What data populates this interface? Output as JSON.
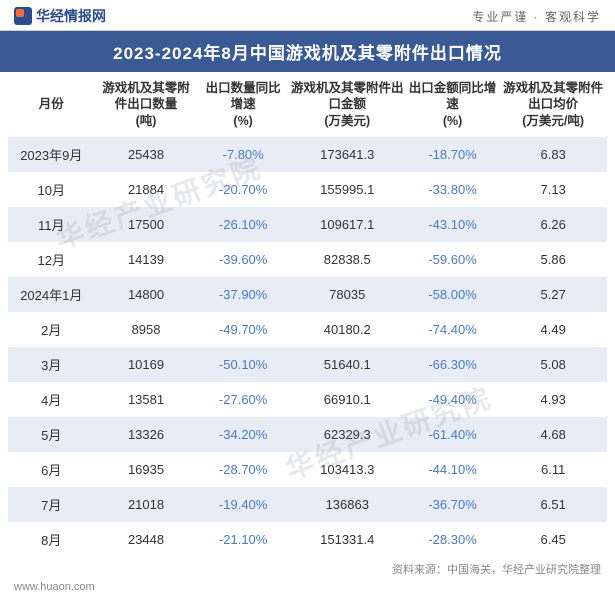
{
  "header": {
    "logo_text": "华经情报网",
    "slogan": "专业严谨 · 客观科学"
  },
  "title": "2023-2024年8月中国游戏机及其零附件出口情况",
  "columns": [
    "月份",
    "游戏机及其零附件出口数量\n(吨)",
    "出口数量同比增速\n(%)",
    "游戏机及其零附件出口金额\n(万美元)",
    "出口金额同比增速\n(%)",
    "游戏机及其零附件出口均价\n(万美元/吨)"
  ],
  "rows": [
    {
      "month": "2023年9月",
      "qty": "25438",
      "qty_g": "-7.80%",
      "amt": "173641.3",
      "amt_g": "-18.70%",
      "price": "6.83"
    },
    {
      "month": "10月",
      "qty": "21884",
      "qty_g": "-20.70%",
      "amt": "155995.1",
      "amt_g": "-33.80%",
      "price": "7.13"
    },
    {
      "month": "11月",
      "qty": "17500",
      "qty_g": "-26.10%",
      "amt": "109617.1",
      "amt_g": "-43.10%",
      "price": "6.26"
    },
    {
      "month": "12月",
      "qty": "14139",
      "qty_g": "-39.60%",
      "amt": "82838.5",
      "amt_g": "-59.60%",
      "price": "5.86"
    },
    {
      "month": "2024年1月",
      "qty": "14800",
      "qty_g": "-37.90%",
      "amt": "78035",
      "amt_g": "-58.00%",
      "price": "5.27"
    },
    {
      "month": "2月",
      "qty": "8958",
      "qty_g": "-49.70%",
      "amt": "40180.2",
      "amt_g": "-74.40%",
      "price": "4.49"
    },
    {
      "month": "3月",
      "qty": "10169",
      "qty_g": "-50.10%",
      "amt": "51640.1",
      "amt_g": "-66.30%",
      "price": "5.08"
    },
    {
      "month": "4月",
      "qty": "13581",
      "qty_g": "-27.60%",
      "amt": "66910.1",
      "amt_g": "-49.40%",
      "price": "4.93"
    },
    {
      "month": "5月",
      "qty": "13326",
      "qty_g": "-34.20%",
      "amt": "62329.3",
      "amt_g": "-61.40%",
      "price": "4.68"
    },
    {
      "month": "6月",
      "qty": "16935",
      "qty_g": "-28.70%",
      "amt": "103413.3",
      "amt_g": "-44.10%",
      "price": "6.11"
    },
    {
      "month": "7月",
      "qty": "21018",
      "qty_g": "-19.40%",
      "amt": "136863",
      "amt_g": "-36.70%",
      "price": "6.51"
    },
    {
      "month": "8月",
      "qty": "23448",
      "qty_g": "-21.10%",
      "amt": "151331.4",
      "amt_g": "-28.30%",
      "price": "6.45"
    }
  ],
  "source": "资料来源：中国海关，华经产业研究院整理",
  "footer": "www.huaon.com",
  "watermark": "华经产业研究院",
  "colors": {
    "title_bg": "#3a5a95",
    "row_odd_bg": "#e8edf5",
    "neg_color": "#4a7ac4"
  }
}
